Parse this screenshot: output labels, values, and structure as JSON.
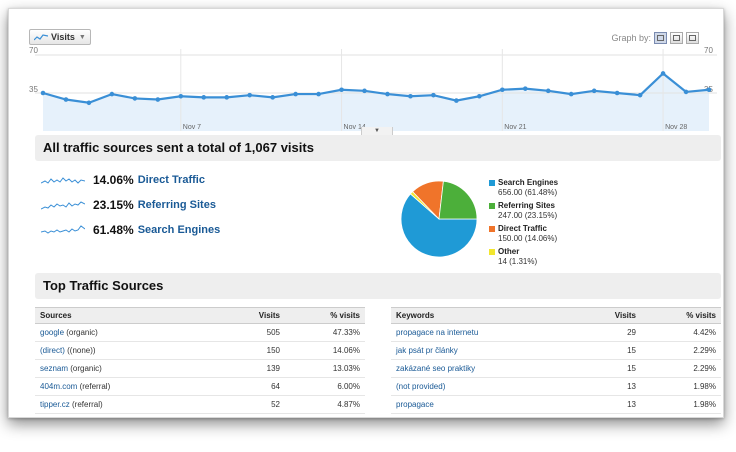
{
  "chart": {
    "button_label": "Visits",
    "graph_by_label": "Graph by:",
    "y_max_label": "70",
    "y_mid_label": "35",
    "x_labels": [
      "Nov 7",
      "Nov 14",
      "Nov 21",
      "Nov 28"
    ],
    "line_color": "#3a8fd6",
    "fill_color": "#e6f1fb"
  },
  "chart_data": {
    "type": "area",
    "ylim": [
      0,
      70
    ],
    "x_labels": [
      "Nov 7",
      "Nov 14",
      "Nov 21",
      "Nov 28"
    ],
    "series": [
      {
        "values": [
          35,
          29,
          26,
          34,
          30,
          29,
          32,
          31,
          31,
          33,
          31,
          34,
          34,
          38,
          37,
          34,
          32,
          33,
          28,
          32,
          38,
          39,
          37,
          34,
          37,
          35,
          33,
          53,
          36,
          38
        ]
      }
    ]
  },
  "summary": {
    "heading": "All traffic sources sent a total of 1,067 visits",
    "rows": [
      {
        "pct": "14.06%",
        "name": "Direct Traffic"
      },
      {
        "pct": "23.15%",
        "name": "Referring Sites"
      },
      {
        "pct": "61.48%",
        "name": "Search Engines"
      }
    ]
  },
  "pie_data": {
    "type": "pie",
    "slices": [
      {
        "name": "Search Engines",
        "value": 656,
        "label": "656.00 (61.48%)",
        "color": "#1f9ad6"
      },
      {
        "name": "Referring Sites",
        "value": 247,
        "label": "247.00 (23.15%)",
        "color": "#4caf3a"
      },
      {
        "name": "Direct Traffic",
        "value": 150,
        "label": "150.00 (14.06%)",
        "color": "#f0742a"
      },
      {
        "name": "Other",
        "value": 14,
        "label": "14 (1.31%)",
        "color": "#f2e62e"
      }
    ]
  },
  "top_sources": {
    "heading": "Top Traffic Sources",
    "sources_table": {
      "headers": [
        "Sources",
        "Visits",
        "% visits"
      ],
      "rows": [
        {
          "link": "google",
          "suffix": " (organic)",
          "visits": "505",
          "pct": "47.33%"
        },
        {
          "link": "(direct)",
          "suffix": " ((none))",
          "visits": "150",
          "pct": "14.06%"
        },
        {
          "link": "seznam",
          "suffix": " (organic)",
          "visits": "139",
          "pct": "13.03%"
        },
        {
          "link": "404m.com",
          "suffix": " (referral)",
          "visits": "64",
          "pct": "6.00%"
        },
        {
          "link": "tipper.cz",
          "suffix": " (referral)",
          "visits": "52",
          "pct": "4.87%"
        }
      ]
    },
    "keywords_table": {
      "headers": [
        "Keywords",
        "Visits",
        "% visits"
      ],
      "rows": [
        {
          "link": "propagace na internetu",
          "visits": "29",
          "pct": "4.42%"
        },
        {
          "link": "jak psát pr články",
          "visits": "15",
          "pct": "2.29%"
        },
        {
          "link": "zakázané seo praktiky",
          "visits": "15",
          "pct": "2.29%"
        },
        {
          "link": "(not provided)",
          "visits": "13",
          "pct": "1.98%"
        },
        {
          "link": "propagace",
          "visits": "13",
          "pct": "1.98%"
        }
      ]
    }
  }
}
